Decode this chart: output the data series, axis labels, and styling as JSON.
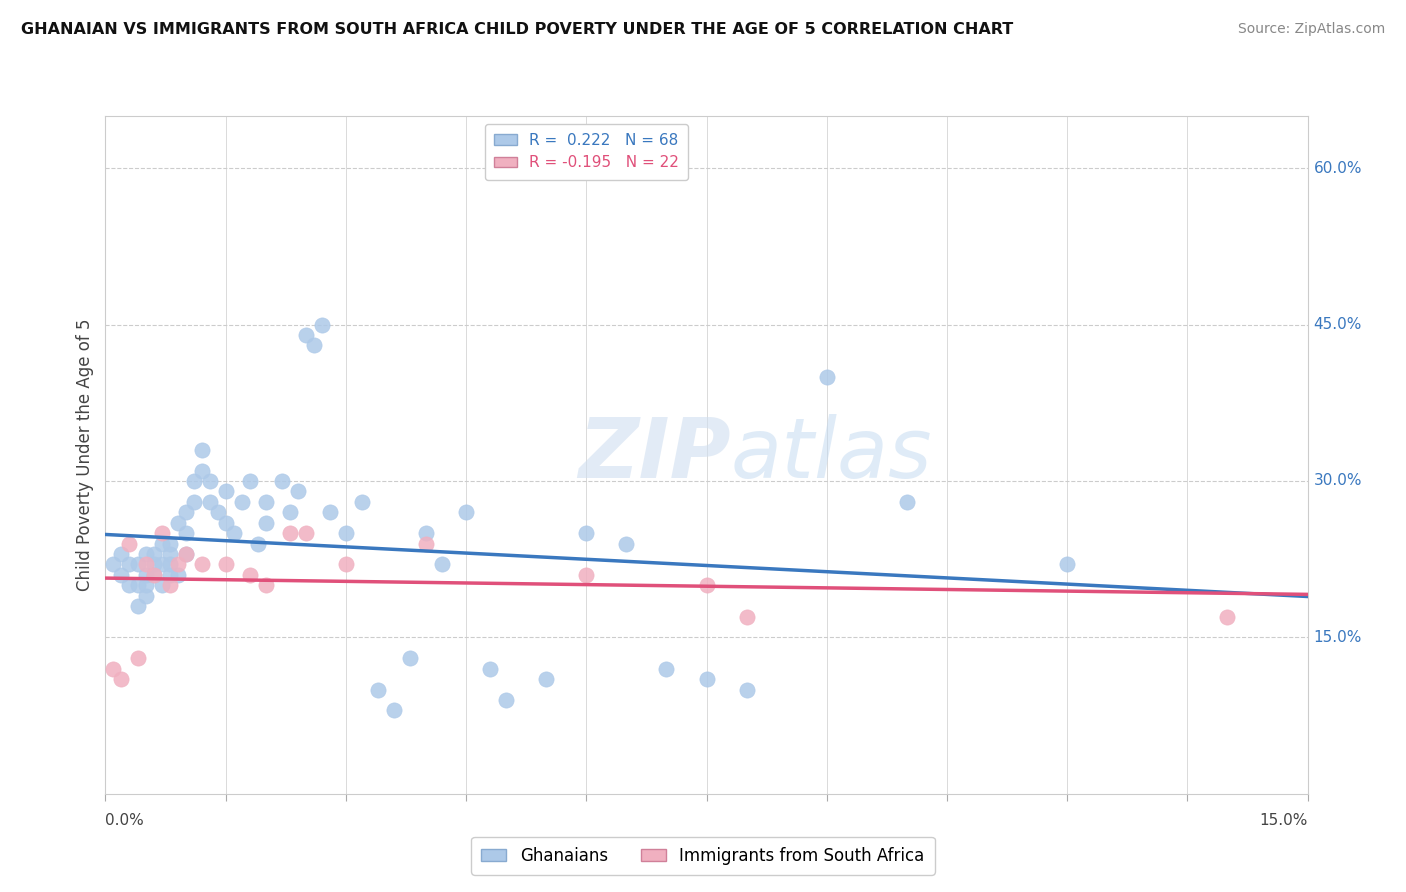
{
  "title": "GHANAIAN VS IMMIGRANTS FROM SOUTH AFRICA CHILD POVERTY UNDER THE AGE OF 5 CORRELATION CHART",
  "source": "Source: ZipAtlas.com",
  "ylabel_text": "Child Poverty Under the Age of 5",
  "xmin": 0.0,
  "xmax": 0.15,
  "ymin": 0.0,
  "ymax": 0.65,
  "blue_R": 0.222,
  "blue_N": 68,
  "pink_R": -0.195,
  "pink_N": 22,
  "blue_color": "#adc9e8",
  "blue_line_color": "#3a78bf",
  "pink_color": "#f0b0c0",
  "pink_line_color": "#e0507a",
  "legend_label_blue": "Ghanaians",
  "legend_label_pink": "Immigrants from South Africa",
  "ylabel_ticks": [
    0.15,
    0.3,
    0.45,
    0.6
  ],
  "ylabel_tick_labels": [
    "15.0%",
    "30.0%",
    "45.0%",
    "60.0%"
  ],
  "blue_scatter_x": [
    0.001,
    0.002,
    0.002,
    0.003,
    0.003,
    0.004,
    0.004,
    0.004,
    0.005,
    0.005,
    0.005,
    0.005,
    0.006,
    0.006,
    0.006,
    0.007,
    0.007,
    0.007,
    0.008,
    0.008,
    0.008,
    0.008,
    0.009,
    0.009,
    0.01,
    0.01,
    0.01,
    0.011,
    0.011,
    0.012,
    0.012,
    0.013,
    0.013,
    0.014,
    0.015,
    0.015,
    0.016,
    0.017,
    0.018,
    0.019,
    0.02,
    0.02,
    0.022,
    0.023,
    0.024,
    0.025,
    0.026,
    0.027,
    0.028,
    0.03,
    0.032,
    0.034,
    0.036,
    0.038,
    0.04,
    0.042,
    0.045,
    0.048,
    0.05,
    0.055,
    0.06,
    0.065,
    0.07,
    0.075,
    0.08,
    0.09,
    0.1,
    0.12
  ],
  "blue_scatter_y": [
    0.22,
    0.21,
    0.23,
    0.2,
    0.22,
    0.18,
    0.2,
    0.22,
    0.19,
    0.21,
    0.2,
    0.23,
    0.22,
    0.23,
    0.21,
    0.24,
    0.22,
    0.2,
    0.23,
    0.21,
    0.22,
    0.24,
    0.21,
    0.26,
    0.23,
    0.25,
    0.27,
    0.3,
    0.28,
    0.33,
    0.31,
    0.3,
    0.28,
    0.27,
    0.26,
    0.29,
    0.25,
    0.28,
    0.3,
    0.24,
    0.26,
    0.28,
    0.3,
    0.27,
    0.29,
    0.44,
    0.43,
    0.45,
    0.27,
    0.25,
    0.28,
    0.1,
    0.08,
    0.13,
    0.25,
    0.22,
    0.27,
    0.12,
    0.09,
    0.11,
    0.25,
    0.24,
    0.12,
    0.11,
    0.1,
    0.4,
    0.28,
    0.22
  ],
  "pink_scatter_x": [
    0.001,
    0.002,
    0.003,
    0.004,
    0.005,
    0.006,
    0.007,
    0.008,
    0.009,
    0.01,
    0.012,
    0.015,
    0.018,
    0.02,
    0.023,
    0.025,
    0.03,
    0.04,
    0.06,
    0.075,
    0.08,
    0.14
  ],
  "pink_scatter_y": [
    0.12,
    0.11,
    0.24,
    0.13,
    0.22,
    0.21,
    0.25,
    0.2,
    0.22,
    0.23,
    0.22,
    0.22,
    0.21,
    0.2,
    0.25,
    0.25,
    0.22,
    0.24,
    0.21,
    0.2,
    0.17,
    0.17
  ]
}
